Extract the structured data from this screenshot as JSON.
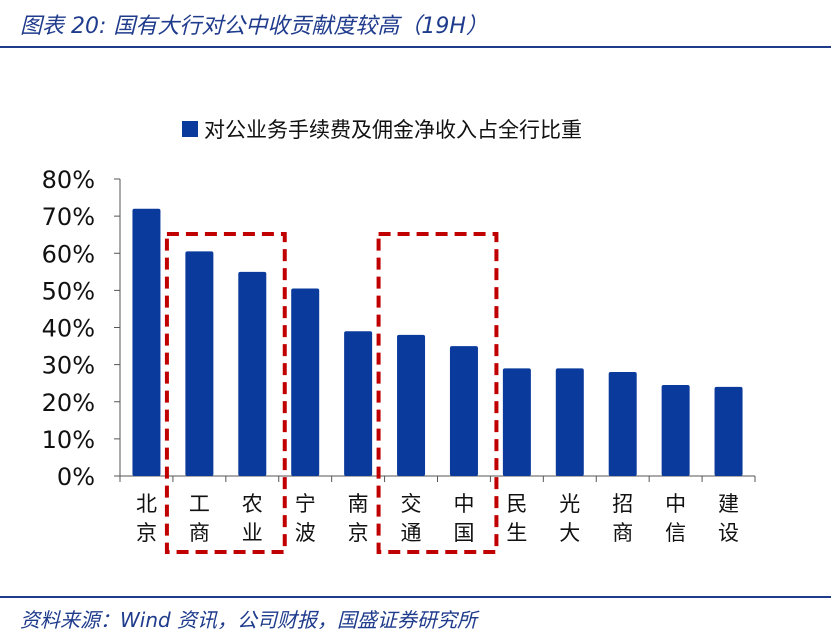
{
  "header": {
    "title": "图表 20:  国有大行对公中收贡献度较高（19H）"
  },
  "footer": {
    "source": "资料来源：Wind 资讯，公司财报，国盛证券研究所"
  },
  "colors": {
    "bar": "#0a3a9c",
    "highlight": "#c00000",
    "header": "#1f3b8c"
  },
  "chart_data": {
    "type": "bar",
    "title": "",
    "legend": {
      "position": "top",
      "entries": [
        "对公业务手续费及佣金净收入占全行比重"
      ]
    },
    "xlabel": "",
    "ylabel": "",
    "ylim": [
      0,
      80
    ],
    "yticks": [
      "0%",
      "10%",
      "20%",
      "30%",
      "40%",
      "50%",
      "60%",
      "70%",
      "80%"
    ],
    "categories": [
      "北京",
      "工商",
      "农业",
      "宁波",
      "南京",
      "交通",
      "中国",
      "民生",
      "光大",
      "招商",
      "中信",
      "建设"
    ],
    "series": [
      {
        "name": "对公业务手续费及佣金净收入占全行比重",
        "values": [
          72,
          60.5,
          55,
          50.5,
          39,
          38,
          35,
          29,
          29,
          28,
          24.5,
          24
        ]
      }
    ],
    "highlighted_groups": [
      [
        "工商",
        "农业"
      ],
      [
        "交通",
        "中国"
      ]
    ]
  }
}
